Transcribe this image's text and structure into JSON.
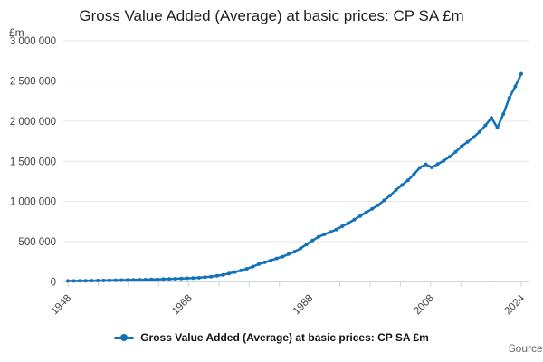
{
  "title": "Gross Value Added (Average) at basic prices: CP SA £m",
  "y_unit_label": "£m",
  "legend": {
    "label": "Gross Value Added (Average) at basic prices: CP SA £m"
  },
  "source_label": "Source:",
  "colors": {
    "line": "#1172ba",
    "grid": "#e6e6e6",
    "axis": "#ccd6e0",
    "tick_text": "#414042",
    "title_text": "#1f1f1f",
    "legend_text": "#111111",
    "source_text": "#6b6b6b"
  },
  "chart_data": {
    "type": "line",
    "title": "Gross Value Added (Average) at basic prices: CP SA £m",
    "xlabel": "",
    "ylabel": "£m",
    "xlim": [
      1948,
      2024
    ],
    "ylim": [
      0,
      3000000
    ],
    "grid": true,
    "legend_position": "bottom",
    "marker": "circle",
    "x_tick_count": 16,
    "x_tick_labels": [
      "1948",
      "1968",
      "1988",
      "2008",
      "2024"
    ],
    "x_tick_label_indices": [
      0,
      4,
      8,
      12,
      15
    ],
    "y_ticks": [
      0,
      500000,
      1000000,
      1500000,
      2000000,
      2500000,
      3000000
    ],
    "y_tick_labels": [
      "0",
      "500 000",
      "1 000 000",
      "1 500 000",
      "2 000 000",
      "2 500 000",
      "3 000 000"
    ],
    "series": [
      {
        "name": "Gross Value Added (Average) at basic prices: CP SA £m",
        "x_start": 1948,
        "x_step": 1,
        "values": [
          12000,
          12700,
          13400,
          14800,
          16100,
          17300,
          18400,
          19900,
          21500,
          22800,
          23800,
          25100,
          26800,
          28600,
          29900,
          31900,
          34800,
          37200,
          39400,
          41600,
          44700,
          47500,
          51800,
          58200,
          65400,
          75100,
          87000,
          105200,
          122800,
          141400,
          163200,
          189800,
          220300,
          243300,
          266300,
          291300,
          313600,
          346000,
          376000,
          416000,
          466000,
          515000,
          560000,
          592000,
          620000,
          652000,
          692000,
          730000,
          774000,
          819000,
          864000,
          909000,
          954000,
          1014000,
          1074000,
          1144000,
          1204000,
          1264000,
          1338000,
          1421000,
          1462000,
          1424000,
          1466000,
          1507000,
          1558000,
          1618000,
          1687000,
          1741000,
          1799000,
          1868000,
          1948000,
          2041000,
          1918000,
          2088000,
          2290000,
          2432000,
          2588000
        ]
      }
    ]
  }
}
